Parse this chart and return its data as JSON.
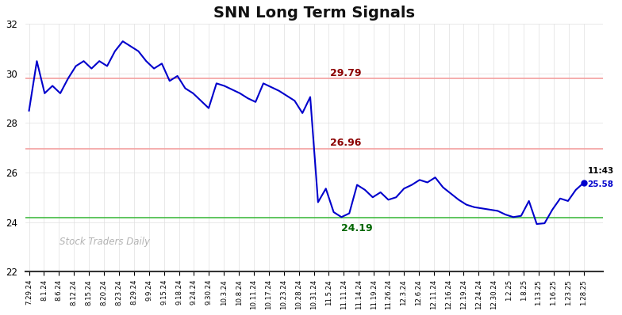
{
  "title": "SNN Long Term Signals",
  "title_fontsize": 14,
  "watermark": "Stock Traders Daily",
  "background_color": "#ffffff",
  "line_color": "#0000cc",
  "line_width": 1.5,
  "hline_red1": 29.79,
  "hline_red2": 26.96,
  "hline_green": 24.19,
  "hline_red_color": "#f4a0a0",
  "hline_red_linewidth": 1.2,
  "hline_green_color": "#44bb44",
  "hline_green_linewidth": 1.2,
  "annotation_29_79_text": "29.79",
  "annotation_29_79_color": "#8b0000",
  "annotation_26_96_text": "26.96",
  "annotation_26_96_color": "#8b0000",
  "annotation_24_19_text": "24.19",
  "annotation_24_19_color": "#006600",
  "annotation_time": "11:43",
  "annotation_price": "25.58",
  "annotation_time_color": "#000000",
  "annotation_price_color": "#0000cc",
  "ylim": [
    22,
    32
  ],
  "yticks": [
    22,
    24,
    26,
    28,
    30,
    32
  ],
  "xtick_labels": [
    "7.29.24",
    "8.1.24",
    "8.6.24",
    "8.12.24",
    "8.15.24",
    "8.20.24",
    "8.23.24",
    "8.29.24",
    "9.9.24",
    "9.15.24",
    "9.18.24",
    "9.24.24",
    "9.30.24",
    "10.3.24",
    "10.8.24",
    "10.11.24",
    "10.17.24",
    "10.23.24",
    "10.28.24",
    "10.31.24",
    "11.5.24",
    "11.11.24",
    "11.14.24",
    "11.19.24",
    "11.26.24",
    "12.3.24",
    "12.6.24",
    "12.11.24",
    "12.16.24",
    "12.19.24",
    "12.24.24",
    "12.30.24",
    "1.2.25",
    "1.8.25",
    "1.13.25",
    "1.16.25",
    "1.23.25",
    "1.28.25"
  ],
  "y_values": [
    28.5,
    30.5,
    29.2,
    29.5,
    29.2,
    29.8,
    30.3,
    30.5,
    30.2,
    30.5,
    30.3,
    30.9,
    31.3,
    31.1,
    30.9,
    30.5,
    30.2,
    30.4,
    29.7,
    29.9,
    29.4,
    29.2,
    28.9,
    28.6,
    29.6,
    29.5,
    29.35,
    29.2,
    29.0,
    28.85,
    29.6,
    29.45,
    29.3,
    29.1,
    28.9,
    28.4,
    29.05,
    24.8,
    25.35,
    24.4,
    24.2,
    24.35,
    25.5,
    25.3,
    25.0,
    25.2,
    24.9,
    25.0,
    25.35,
    25.5,
    25.7,
    25.6,
    25.8,
    25.4,
    25.15,
    24.9,
    24.7,
    24.6,
    24.55,
    24.5,
    24.45,
    24.3,
    24.2,
    24.25,
    24.85,
    23.92,
    23.95,
    24.5,
    24.95,
    24.85,
    25.3,
    25.58
  ]
}
